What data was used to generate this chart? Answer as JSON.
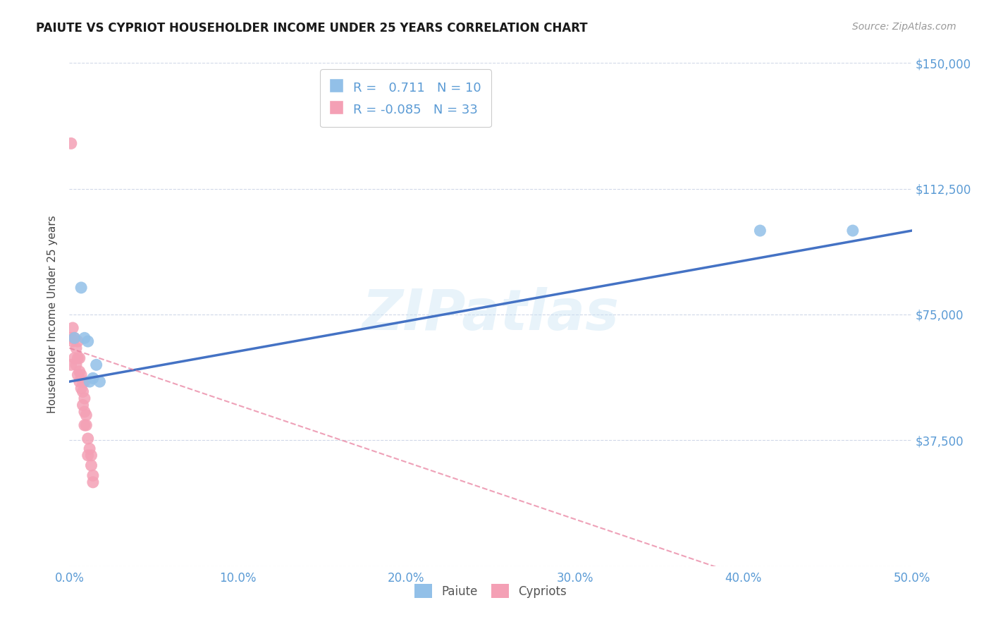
{
  "title": "PAIUTE VS CYPRIOT HOUSEHOLDER INCOME UNDER 25 YEARS CORRELATION CHART",
  "source": "Source: ZipAtlas.com",
  "axis_color": "#5b9bd5",
  "ylabel": "Householder Income Under 25 years",
  "paiute_R": 0.711,
  "paiute_N": 10,
  "cypriot_R": -0.085,
  "cypriot_N": 33,
  "paiute_color": "#92c0e8",
  "cypriot_color": "#f4a0b5",
  "trend_paiute_color": "#4472c4",
  "trend_cypriot_color": "#e87a9a",
  "xmin": 0.0,
  "xmax": 0.5,
  "ymin": 0,
  "ymax": 150000,
  "yticks": [
    0,
    37500,
    75000,
    112500,
    150000
  ],
  "ytick_labels": [
    "",
    "$37,500",
    "$75,000",
    "$112,500",
    "$150,000"
  ],
  "xticks": [
    0.0,
    0.1,
    0.2,
    0.3,
    0.4,
    0.5
  ],
  "xtick_labels": [
    "0.0%",
    "10.0%",
    "20.0%",
    "30.0%",
    "40.0%",
    "50.0%"
  ],
  "watermark": "ZIPatlas",
  "paiute_x": [
    0.003,
    0.007,
    0.009,
    0.011,
    0.012,
    0.014,
    0.016,
    0.018,
    0.41,
    0.465
  ],
  "paiute_y": [
    68000,
    83000,
    68000,
    67000,
    55000,
    56000,
    60000,
    55000,
    100000,
    100000
  ],
  "cypriot_x": [
    0.001,
    0.001,
    0.002,
    0.002,
    0.003,
    0.003,
    0.004,
    0.004,
    0.005,
    0.005,
    0.005,
    0.006,
    0.006,
    0.006,
    0.007,
    0.007,
    0.008,
    0.008,
    0.008,
    0.009,
    0.009,
    0.009,
    0.009,
    0.01,
    0.01,
    0.011,
    0.011,
    0.012,
    0.013,
    0.013,
    0.014,
    0.014,
    0.001
  ],
  "cypriot_y": [
    126000,
    68000,
    71000,
    67000,
    68000,
    62000,
    65000,
    60000,
    67000,
    62000,
    57000,
    62000,
    58000,
    55000,
    57000,
    53000,
    55000,
    52000,
    48000,
    55000,
    50000,
    46000,
    42000,
    45000,
    42000,
    38000,
    33000,
    35000,
    33000,
    30000,
    27000,
    25000,
    60000
  ],
  "paiute_trendline": [
    55000,
    100000
  ],
  "cypriot_trendline": [
    65000,
    -20000
  ],
  "bg_color": "#ffffff",
  "grid_color": "#d0d8e8",
  "title_fontsize": 12,
  "source_fontsize": 10,
  "axis_label_fontsize": 12,
  "ylabel_fontsize": 11
}
